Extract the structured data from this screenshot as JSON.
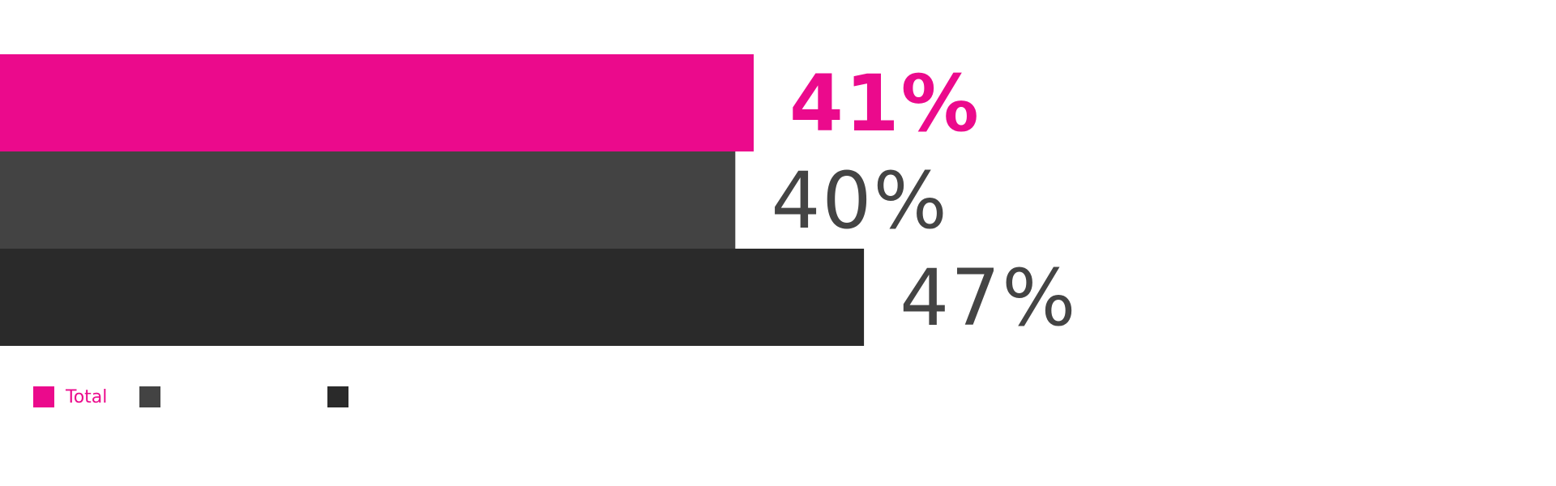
{
  "chart_data": {
    "type": "bar",
    "orientation": "horizontal",
    "title": "",
    "xlabel": "",
    "ylabel": "",
    "xlim": [
      0,
      82
    ],
    "grid": false,
    "legend_position": "bottom-left",
    "series": [
      {
        "name": "Total",
        "value": 41,
        "label": "41%",
        "color": "#EB0A8C",
        "emphasis": true
      },
      {
        "name": "",
        "value": 40,
        "label": "40%",
        "color": "#434343",
        "emphasis": false
      },
      {
        "name": "",
        "value": 47,
        "label": "47%",
        "color": "#2A2A2A",
        "emphasis": false
      }
    ],
    "value_label_color": "#444444"
  }
}
